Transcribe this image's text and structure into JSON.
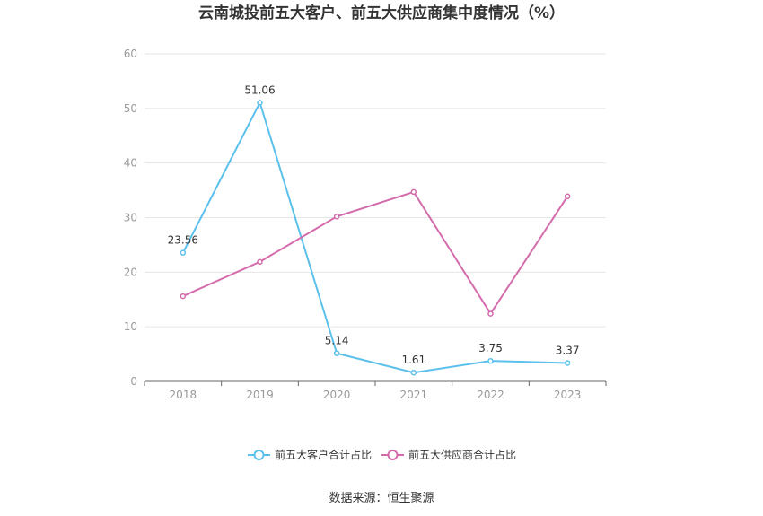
{
  "chart_data": {
    "type": "line",
    "title": "云南城投前五大客户、前五大供应商集中度情况（%）",
    "categories": [
      "2018",
      "2019",
      "2020",
      "2021",
      "2022",
      "2023"
    ],
    "ylim": [
      0,
      60
    ],
    "yticks": [
      0,
      10,
      20,
      30,
      40,
      50,
      60
    ],
    "grid": true,
    "legend_position": "bottom",
    "series": [
      {
        "name": "前五大客户合计占比",
        "color": "#5bc0eb",
        "values": [
          23.56,
          51.06,
          5.14,
          1.61,
          3.75,
          3.37
        ],
        "labels": [
          "23.56",
          "51.06",
          "5.14",
          "1.61",
          "3.75",
          "3.37"
        ]
      },
      {
        "name": "前五大供应商合计占比",
        "color": "#d46bac",
        "values": [
          15.6,
          21.9,
          30.2,
          34.7,
          12.4,
          33.9
        ]
      }
    ]
  },
  "source": "数据来源：恒生聚源"
}
